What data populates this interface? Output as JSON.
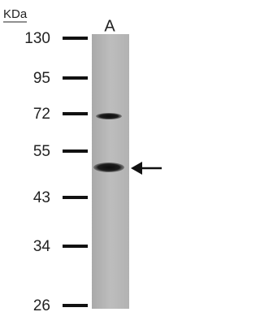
{
  "unit_label": "KDa",
  "lane_label": "A",
  "markers": [
    130,
    95,
    72,
    55,
    43,
    34,
    26
  ]
}
